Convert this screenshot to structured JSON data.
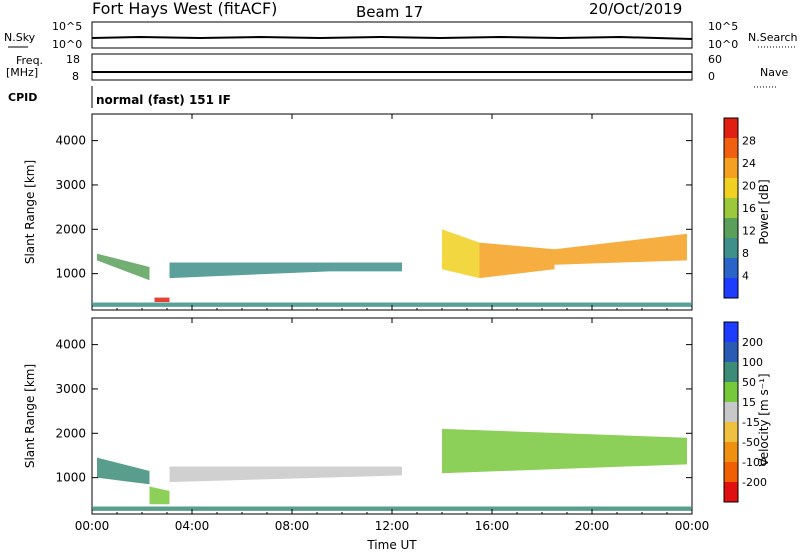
{
  "header": {
    "title": "Fort Hays West (fitACF)",
    "beam": "Beam 17",
    "date": "20/Oct/2019"
  },
  "status_panels": {
    "nsky_label": "N.Sky",
    "nsky_ticks": [
      "10^5",
      "10^0"
    ],
    "nsearch_label": "N.Search",
    "nsearch_ticks": [
      "10^5",
      "10^0"
    ],
    "freq_label_1": "Freq.",
    "freq_label_2": "[MHz]",
    "freq_ticks": [
      "18",
      "8"
    ],
    "nave_label": "Nave",
    "nave_ticks": [
      "60",
      "0"
    ],
    "cpid_label": "CPID",
    "cpid_text": "normal (fast) 151 IF"
  },
  "colors": {
    "power": [
      "#1e3cff",
      "#2a64c8",
      "#3f8f8a",
      "#5aa05a",
      "#9cc83c",
      "#f0d020",
      "#f5a020",
      "#f06010",
      "#e02010"
    ],
    "velocity": [
      "#1e3cff",
      "#2a5ab4",
      "#3c8c78",
      "#78c83c",
      "#c8c8c8",
      "#f0c040",
      "#f09010",
      "#f06000",
      "#e01010"
    ]
  },
  "chart_data": [
    {
      "type": "heatmap",
      "name": "power",
      "ylabel": "Slant Range [km]",
      "xlabel": "",
      "x_ticks": [
        "00:00",
        "04:00",
        "08:00",
        "12:00",
        "16:00",
        "20:00",
        "00:00"
      ],
      "x_range_hours": [
        0,
        24
      ],
      "y_ticks": [
        1000,
        2000,
        3000,
        4000
      ],
      "ylim": [
        180,
        4600
      ],
      "colorbar_label": "Power [dB]",
      "colorbar_ticks": [
        4,
        8,
        12,
        16,
        20,
        24,
        28
      ],
      "colorbar_range": [
        0,
        32
      ],
      "regions": [
        {
          "t": [
            0.2,
            2.3
          ],
          "r0": [
            1300,
            850
          ],
          "r1": [
            1450,
            1150
          ],
          "v": 14
        },
        {
          "t": [
            2.5,
            3.1
          ],
          "r0": [
            360,
            360
          ],
          "r1": [
            460,
            460
          ],
          "v": 30
        },
        {
          "t": [
            3.1,
            9.5
          ],
          "r0": [
            900,
            1050
          ],
          "r1": [
            1250,
            1250
          ],
          "v": 10
        },
        {
          "t": [
            9.5,
            12.4
          ],
          "r0": [
            1050,
            1050
          ],
          "r1": [
            1250,
            1250
          ],
          "v": 9
        },
        {
          "t": [
            14.0,
            15.5
          ],
          "r0": [
            1100,
            900
          ],
          "r1": [
            2000,
            1700
          ],
          "v": 18
        },
        {
          "t": [
            15.5,
            18.5
          ],
          "r0": [
            900,
            1100
          ],
          "r1": [
            1700,
            1550
          ],
          "v": 22
        },
        {
          "t": [
            18.5,
            23.8
          ],
          "r0": [
            1200,
            1300
          ],
          "r1": [
            1550,
            1900
          ],
          "v": 24
        },
        {
          "t": [
            0.0,
            24.0
          ],
          "r0": [
            250,
            250
          ],
          "r1": [
            350,
            350
          ],
          "v": 8
        }
      ]
    },
    {
      "type": "heatmap",
      "name": "velocity",
      "ylabel": "Slant Range [km]",
      "xlabel": "Time UT",
      "x_ticks": [
        "00:00",
        "04:00",
        "08:00",
        "12:00",
        "16:00",
        "20:00",
        "00:00"
      ],
      "x_range_hours": [
        0,
        24
      ],
      "y_ticks": [
        1000,
        2000,
        3000,
        4000
      ],
      "ylim": [
        180,
        4600
      ],
      "colorbar_label": "Velocity [m s⁻¹]",
      "colorbar_ticks": [
        "200",
        "100",
        "50",
        "15",
        "-15",
        "-50",
        "-100",
        "-200"
      ],
      "regions": [
        {
          "t": [
            0.2,
            2.3
          ],
          "r0": [
            1000,
            850
          ],
          "r1": [
            1450,
            1150
          ],
          "v": "50"
        },
        {
          "t": [
            2.3,
            3.1
          ],
          "r0": [
            400,
            400
          ],
          "r1": [
            800,
            700
          ],
          "v": "15"
        },
        {
          "t": [
            3.1,
            12.4
          ],
          "r0": [
            900,
            1050
          ],
          "r1": [
            1250,
            1250
          ],
          "v": "-15"
        },
        {
          "t": [
            14.0,
            23.8
          ],
          "r0": [
            1100,
            1300
          ],
          "r1": [
            2100,
            1900
          ],
          "v": "15"
        },
        {
          "t": [
            0.0,
            24.0
          ],
          "r0": [
            250,
            250
          ],
          "r1": [
            350,
            350
          ],
          "v": "50"
        }
      ]
    }
  ]
}
